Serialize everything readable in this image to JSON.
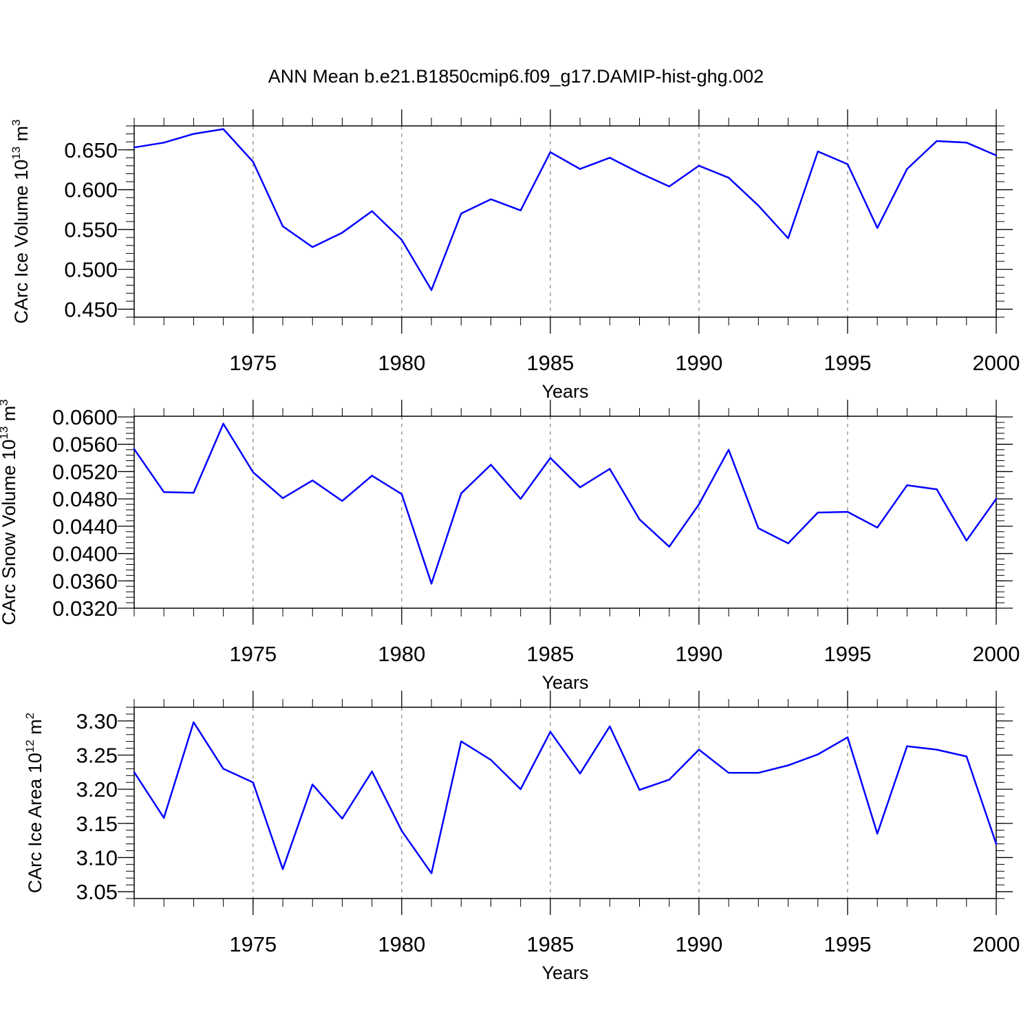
{
  "page_title": "ANN Mean b.e21.B1850cmip6.f09_g17.DAMIP-hist-ghg.002",
  "style": {
    "line_color": "#0000ff",
    "axis_color": "#000000",
    "grid_color": "#9a9a9a"
  },
  "chart_data": [
    {
      "type": "line",
      "title": "",
      "xlabel": "Years",
      "ylabel_main": "CArc Ice Volume 10",
      "ylabel_exp": "13",
      "ylabel_unit": "m",
      "ylabel_unit_exp": "3",
      "xlim": [
        1971,
        2000
      ],
      "ylim": [
        0.44,
        0.68
      ],
      "yticks": [
        0.45,
        0.5,
        0.55,
        0.6,
        0.65
      ],
      "ytick_labels": [
        "0.450",
        "0.500",
        "0.550",
        "0.600",
        "0.650"
      ],
      "xticks": [
        1975,
        1980,
        1985,
        1990,
        1995,
        2000
      ],
      "xtick_labels": [
        "1975",
        "1980",
        "1985",
        "1990",
        "1995",
        "2000"
      ],
      "grid_x": [
        1975,
        1980,
        1985,
        1990,
        1995
      ],
      "x": [
        1971,
        1972,
        1973,
        1974,
        1975,
        1976,
        1977,
        1978,
        1979,
        1980,
        1981,
        1982,
        1983,
        1984,
        1985,
        1986,
        1987,
        1988,
        1989,
        1990,
        1991,
        1992,
        1993,
        1994,
        1995,
        1996,
        1997,
        1998,
        1999,
        2000
      ],
      "y": [
        0.653,
        0.659,
        0.67,
        0.676,
        0.635,
        0.554,
        0.528,
        0.546,
        0.573,
        0.537,
        0.474,
        0.57,
        0.588,
        0.574,
        0.647,
        0.626,
        0.64,
        0.621,
        0.604,
        0.63,
        0.615,
        0.58,
        0.539,
        0.648,
        0.632,
        0.552,
        0.626,
        0.661,
        0.659,
        0.643
      ]
    },
    {
      "type": "line",
      "title": "",
      "xlabel": "Years",
      "ylabel_main": "CArc Snow Volume 10",
      "ylabel_exp": "13",
      "ylabel_unit": "m",
      "ylabel_unit_exp": "3",
      "xlim": [
        1971,
        2000
      ],
      "ylim": [
        0.032,
        0.0601
      ],
      "yticks": [
        0.032,
        0.036,
        0.04,
        0.044,
        0.048,
        0.052,
        0.056,
        0.06
      ],
      "ytick_labels": [
        "0.0320",
        "0.0360",
        "0.0400",
        "0.0440",
        "0.0480",
        "0.0520",
        "0.0560",
        "0.0600"
      ],
      "xticks": [
        1975,
        1980,
        1985,
        1990,
        1995,
        2000
      ],
      "xtick_labels": [
        "1975",
        "1980",
        "1985",
        "1990",
        "1995",
        "2000"
      ],
      "grid_x": [
        1975,
        1980,
        1985,
        1990,
        1995
      ],
      "x": [
        1971,
        1972,
        1973,
        1974,
        1975,
        1976,
        1977,
        1978,
        1979,
        1980,
        1981,
        1982,
        1983,
        1984,
        1985,
        1986,
        1987,
        1988,
        1989,
        1990,
        1991,
        1992,
        1993,
        1994,
        1995,
        1996,
        1997,
        1998,
        1999,
        2000
      ],
      "y": [
        0.0553,
        0.049,
        0.0489,
        0.059,
        0.0519,
        0.0481,
        0.0507,
        0.0477,
        0.0514,
        0.0487,
        0.0356,
        0.0488,
        0.053,
        0.048,
        0.054,
        0.0497,
        0.0524,
        0.045,
        0.041,
        0.0472,
        0.0552,
        0.0437,
        0.0415,
        0.046,
        0.0461,
        0.0438,
        0.05,
        0.0494,
        0.0419,
        0.048
      ]
    },
    {
      "type": "line",
      "title": "",
      "xlabel": "Years",
      "ylabel_main": "CArc Ice Area 10",
      "ylabel_exp": "12",
      "ylabel_unit": "m",
      "ylabel_unit_exp": "2",
      "xlim": [
        1971,
        2000
      ],
      "ylim": [
        3.04,
        3.32
      ],
      "yticks": [
        3.05,
        3.1,
        3.15,
        3.2,
        3.25,
        3.3
      ],
      "ytick_labels": [
        "3.05",
        "3.10",
        "3.15",
        "3.20",
        "3.25",
        "3.30"
      ],
      "xticks": [
        1975,
        1980,
        1985,
        1990,
        1995,
        2000
      ],
      "xtick_labels": [
        "1975",
        "1980",
        "1985",
        "1990",
        "1995",
        "2000"
      ],
      "grid_x": [
        1975,
        1980,
        1985,
        1990,
        1995
      ],
      "x": [
        1971,
        1972,
        1973,
        1974,
        1975,
        1976,
        1977,
        1978,
        1979,
        1980,
        1981,
        1982,
        1983,
        1984,
        1985,
        1986,
        1987,
        1988,
        1989,
        1990,
        1991,
        1992,
        1993,
        1994,
        1995,
        1996,
        1997,
        1998,
        1999,
        2000
      ],
      "y": [
        3.225,
        3.158,
        3.298,
        3.23,
        3.21,
        3.083,
        3.207,
        3.157,
        3.226,
        3.139,
        3.077,
        3.27,
        3.243,
        3.2,
        3.284,
        3.223,
        3.292,
        3.199,
        3.214,
        3.258,
        3.224,
        3.224,
        3.235,
        3.251,
        3.276,
        3.135,
        3.263,
        3.258,
        3.248,
        3.12
      ]
    }
  ]
}
